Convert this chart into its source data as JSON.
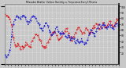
{
  "title": "Milwaukee Weather  Outdoor Humidity vs. Temperature Every 5 Minutes",
  "bg_color": "#c8c8c8",
  "plot_bg_color": "#c8c8c8",
  "grid_color": "#e8e8e8",
  "temp_color": "#dd0000",
  "humid_color": "#0000cc",
  "ylim": [
    0,
    105
  ],
  "right_yticks": [
    20,
    30,
    40,
    50,
    60,
    70,
    80,
    90,
    100
  ],
  "right_yticklabels": [
    "20",
    "30",
    "40",
    "50",
    "60",
    "70",
    "80",
    "90",
    "100"
  ],
  "temp_data": [
    85,
    86,
    85,
    84,
    86,
    85,
    83,
    82,
    80,
    78,
    76,
    72,
    68,
    62,
    55,
    48,
    42,
    37,
    34,
    32,
    30,
    31,
    33,
    35,
    34,
    33,
    31,
    30,
    29,
    31,
    32,
    30,
    28,
    29,
    31,
    33,
    35,
    37,
    36,
    35,
    34,
    32,
    31,
    30,
    31,
    33,
    35,
    38,
    40,
    42,
    44,
    46,
    48,
    50,
    52,
    54,
    52,
    50,
    48,
    46,
    44,
    42,
    40,
    38,
    36,
    34,
    33,
    32,
    31,
    30,
    29,
    28,
    30,
    32,
    35,
    38,
    40,
    42,
    44,
    46,
    48,
    50,
    52,
    54,
    56,
    57,
    56,
    55,
    54,
    52,
    50,
    48,
    46,
    44,
    42,
    40,
    42,
    44,
    46,
    48,
    50,
    52,
    54,
    55,
    57,
    58,
    60,
    62,
    60,
    58,
    56,
    54,
    52,
    50,
    48,
    46,
    44,
    42,
    44,
    46,
    48,
    50,
    52,
    54,
    56,
    58,
    60,
    62,
    64,
    63,
    62,
    61,
    60,
    58,
    57,
    56,
    55,
    56,
    57,
    58,
    60,
    62,
    64,
    63,
    62,
    60,
    58,
    56,
    55,
    54,
    56,
    58,
    60,
    62,
    64,
    65,
    66,
    67,
    68,
    69,
    70,
    68,
    66,
    64,
    62,
    60,
    62,
    64,
    66,
    68,
    70,
    72,
    70,
    68,
    66,
    64,
    62,
    64,
    66,
    68,
    70,
    72,
    74,
    73,
    72,
    71,
    70,
    68,
    66,
    64,
    66,
    68,
    70,
    72,
    74,
    76,
    78,
    77,
    76,
    75
  ],
  "humid_data": [
    18,
    17,
    16,
    15,
    14,
    15,
    16,
    18,
    20,
    25,
    30,
    38,
    48,
    58,
    65,
    70,
    74,
    76,
    78,
    80,
    81,
    82,
    83,
    84,
    83,
    82,
    81,
    80,
    81,
    82,
    83,
    84,
    85,
    84,
    83,
    82,
    80,
    78,
    76,
    74,
    72,
    70,
    72,
    74,
    76,
    78,
    80,
    82,
    83,
    84,
    85,
    84,
    83,
    82,
    80,
    78,
    76,
    74,
    72,
    70,
    68,
    66,
    64,
    62,
    60,
    58,
    60,
    62,
    64,
    66,
    68,
    70,
    72,
    70,
    68,
    66,
    64,
    62,
    60,
    58,
    56,
    54,
    52,
    50,
    52,
    54,
    56,
    58,
    60,
    62,
    64,
    62,
    60,
    58,
    56,
    54,
    52,
    50,
    52,
    54,
    56,
    58,
    56,
    54,
    52,
    50,
    48,
    46,
    48,
    50,
    52,
    50,
    48,
    46,
    44,
    42,
    44,
    46,
    48,
    46,
    44,
    42,
    40,
    38,
    40,
    42,
    44,
    42,
    40,
    38,
    36,
    38,
    40,
    42,
    44,
    42,
    40,
    38,
    36,
    34,
    36,
    38,
    40,
    42,
    44,
    46,
    48,
    50,
    52,
    54,
    56,
    58,
    60,
    58,
    56,
    54,
    52,
    54,
    56,
    58,
    60,
    62,
    64,
    66,
    68,
    70,
    68,
    66,
    64,
    66,
    68,
    70,
    72,
    70,
    68,
    66,
    64,
    62,
    60,
    62,
    64,
    66,
    68,
    70,
    68,
    66,
    64,
    62,
    60,
    62,
    64,
    66,
    68,
    70,
    72,
    70,
    68,
    66,
    64,
    62
  ]
}
